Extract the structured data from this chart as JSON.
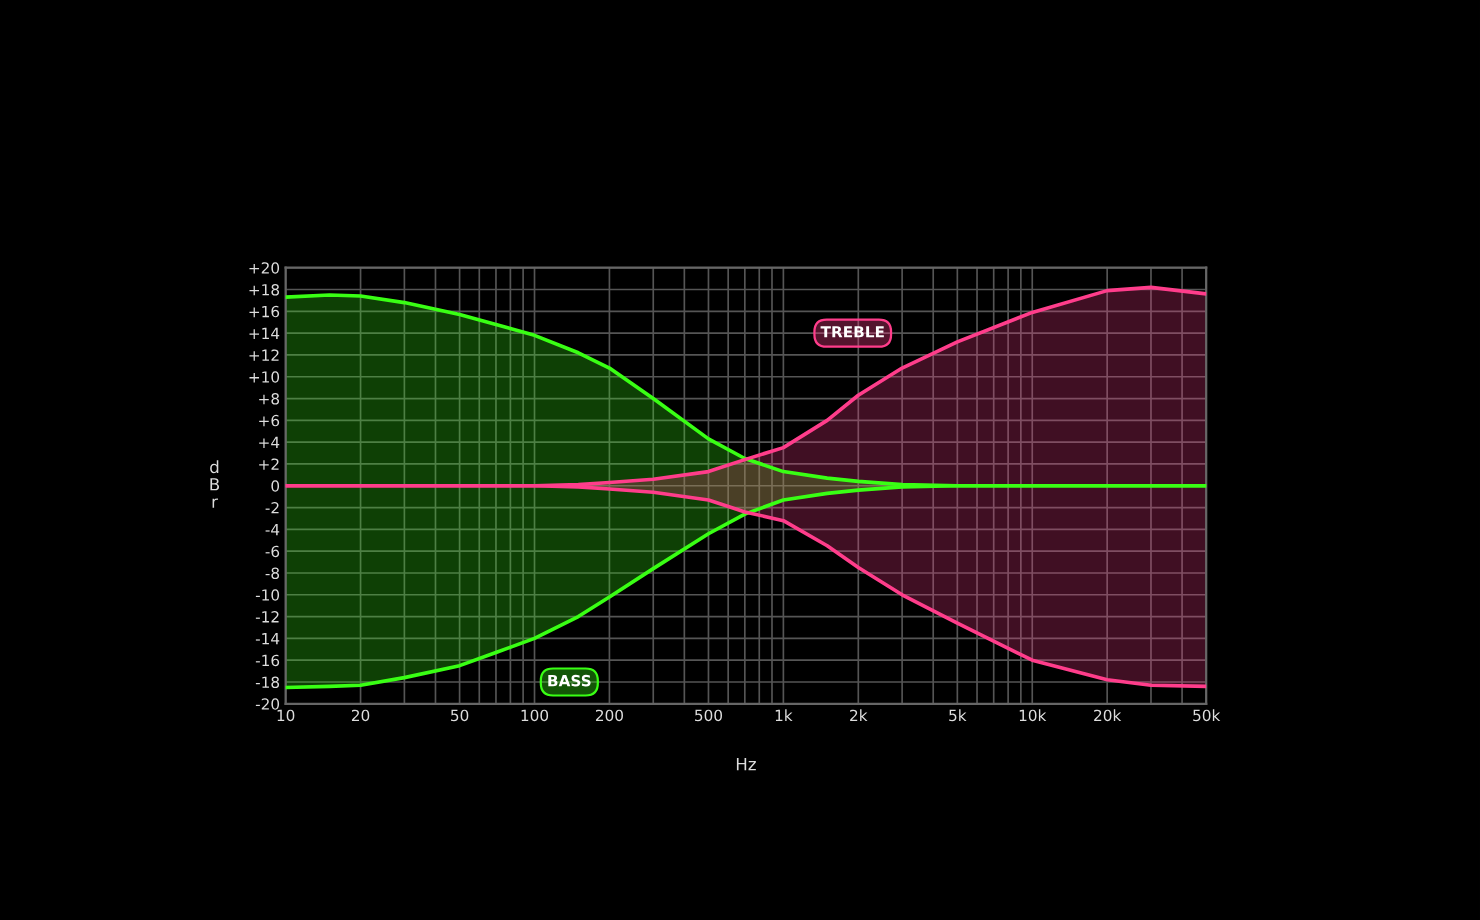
{
  "chart_data": {
    "type": "line",
    "xlabel": "Hz",
    "ylabel": "dBr",
    "x": [
      10,
      15,
      20,
      30,
      50,
      70,
      100,
      150,
      200,
      300,
      500,
      700,
      1000,
      1500,
      2000,
      3000,
      5000,
      10000,
      20000,
      30000,
      50000
    ],
    "series": [
      {
        "color": "#39ff14",
        "values": [
          17.3,
          17.5,
          17.4,
          16.8,
          15.7,
          14.8,
          13.8,
          12.2,
          10.8,
          8.0,
          4.3,
          2.5,
          1.3,
          0.7,
          0.4,
          0.1,
          0,
          0,
          0,
          0,
          0
        ],
        "upper": [
          17.3,
          17.5,
          17.4,
          16.8,
          15.7,
          14.8,
          13.8,
          12.2,
          10.8,
          8.0,
          4.3,
          2.5,
          1.3,
          0.7,
          0.4,
          0.1,
          0,
          0,
          0,
          0,
          0
        ],
        "lower": [
          -18.5,
          -18.4,
          -18.3,
          -17.6,
          -16.5,
          -15.3,
          -14.0,
          -12.0,
          -10.2,
          -7.6,
          -4.4,
          -2.6,
          -1.3,
          -0.7,
          -0.4,
          -0.1,
          0,
          0,
          0,
          0,
          0
        ]
      },
      {
        "color": "#39ff14",
        "values": [
          -18.5,
          -18.4,
          -18.3,
          -17.6,
          -16.5,
          -15.3,
          -14.0,
          -12.0,
          -10.2,
          -7.6,
          -4.4,
          -2.6,
          -1.3,
          -0.7,
          -0.4,
          -0.1,
          0,
          0,
          0,
          0,
          0
        ]
      },
      {
        "color": "#ff3d8b",
        "values": [
          0,
          0,
          0,
          0,
          0,
          0,
          0,
          -0.1,
          -0.3,
          -0.6,
          -1.3,
          -2.4,
          -3.2,
          -5.5,
          -7.5,
          -10.0,
          -12.6,
          -16.0,
          -17.8,
          -18.3,
          -18.4
        ]
      },
      {
        "color": "#ff3d8b",
        "values": [
          0,
          0,
          0,
          0,
          0,
          0,
          0,
          0.1,
          0.3,
          0.6,
          1.3,
          2.4,
          3.5,
          6.0,
          8.3,
          10.8,
          13.2,
          15.9,
          17.9,
          18.2,
          17.6
        ],
        "upper": [
          0,
          0,
          0,
          0,
          0,
          0,
          0,
          0.1,
          0.3,
          0.6,
          1.3,
          2.4,
          3.5,
          6.0,
          8.3,
          10.8,
          13.2,
          15.9,
          17.9,
          18.2,
          17.6
        ],
        "lower": [
          0,
          0,
          0,
          0,
          0,
          0,
          0,
          -0.1,
          -0.3,
          -0.6,
          -1.3,
          -2.4,
          -3.2,
          -5.5,
          -7.5,
          -10.0,
          -12.6,
          -16.0,
          -17.8,
          -18.3,
          -18.4
        ]
      }
    ],
    "annotations": [
      {
        "text": "BASS",
        "x": 138,
        "y": -18
      },
      {
        "text": "TREBLE",
        "x": 1900,
        "y": 14
      }
    ],
    "log": "x",
    "grid": true,
    "legend": false,
    "xlim": [
      10,
      50000
    ],
    "ylim": [
      -20,
      20
    ],
    "xticks": [
      10,
      20,
      {
        "value": 30,
        "label": null
      },
      {
        "value": 40,
        "label": null
      },
      50,
      {
        "value": 60,
        "label": null
      },
      {
        "value": 70,
        "label": null
      },
      {
        "value": 80,
        "label": null
      },
      {
        "value": 90,
        "label": null
      },
      100,
      200,
      {
        "value": 300,
        "label": null
      },
      {
        "value": 400,
        "label": null
      },
      500,
      {
        "value": 600,
        "label": null
      },
      {
        "value": 700,
        "label": null
      },
      {
        "value": 800,
        "label": null
      },
      {
        "value": 900,
        "label": null
      },
      {
        "value": 1000,
        "label": "1k"
      },
      {
        "value": 2000,
        "label": "2k"
      },
      {
        "value": 3000,
        "label": null
      },
      {
        "value": 4000,
        "label": null
      },
      {
        "value": 5000,
        "label": "5k"
      },
      {
        "value": 6000,
        "label": null
      },
      {
        "value": 7000,
        "label": null
      },
      {
        "value": 8000,
        "label": null
      },
      {
        "value": 9000,
        "label": null
      },
      {
        "value": 10000,
        "label": "10k"
      },
      {
        "value": 20000,
        "label": "20k"
      },
      {
        "value": 30000,
        "label": null
      },
      {
        "value": 40000,
        "label": null
      },
      {
        "value": 50000,
        "label": "50k"
      }
    ],
    "yticks": [
      {
        "value": 20,
        "label": "+20"
      },
      {
        "value": 18,
        "label": "+18"
      },
      {
        "value": 16,
        "label": "+16"
      },
      {
        "value": 14,
        "label": "+14"
      },
      {
        "value": 12,
        "label": "+12"
      },
      {
        "value": 10,
        "label": "+10"
      },
      {
        "value": 8,
        "label": "+8"
      },
      {
        "value": 6,
        "label": "+6"
      },
      {
        "value": 4,
        "label": "+4"
      },
      {
        "value": 2,
        "label": "+2"
      },
      0,
      {
        "value": -2,
        "label": "-2"
      },
      {
        "value": -4,
        "label": "-4"
      },
      {
        "value": -6,
        "label": "-6"
      },
      {
        "value": -8,
        "label": "-8"
      },
      {
        "value": -10,
        "label": "-10"
      },
      {
        "value": -12,
        "label": "-12"
      },
      {
        "value": -14,
        "label": "-14"
      },
      {
        "value": -16,
        "label": "-16"
      },
      {
        "value": -18,
        "label": "-18"
      },
      {
        "value": -20,
        "label": "-20"
      }
    ]
  }
}
